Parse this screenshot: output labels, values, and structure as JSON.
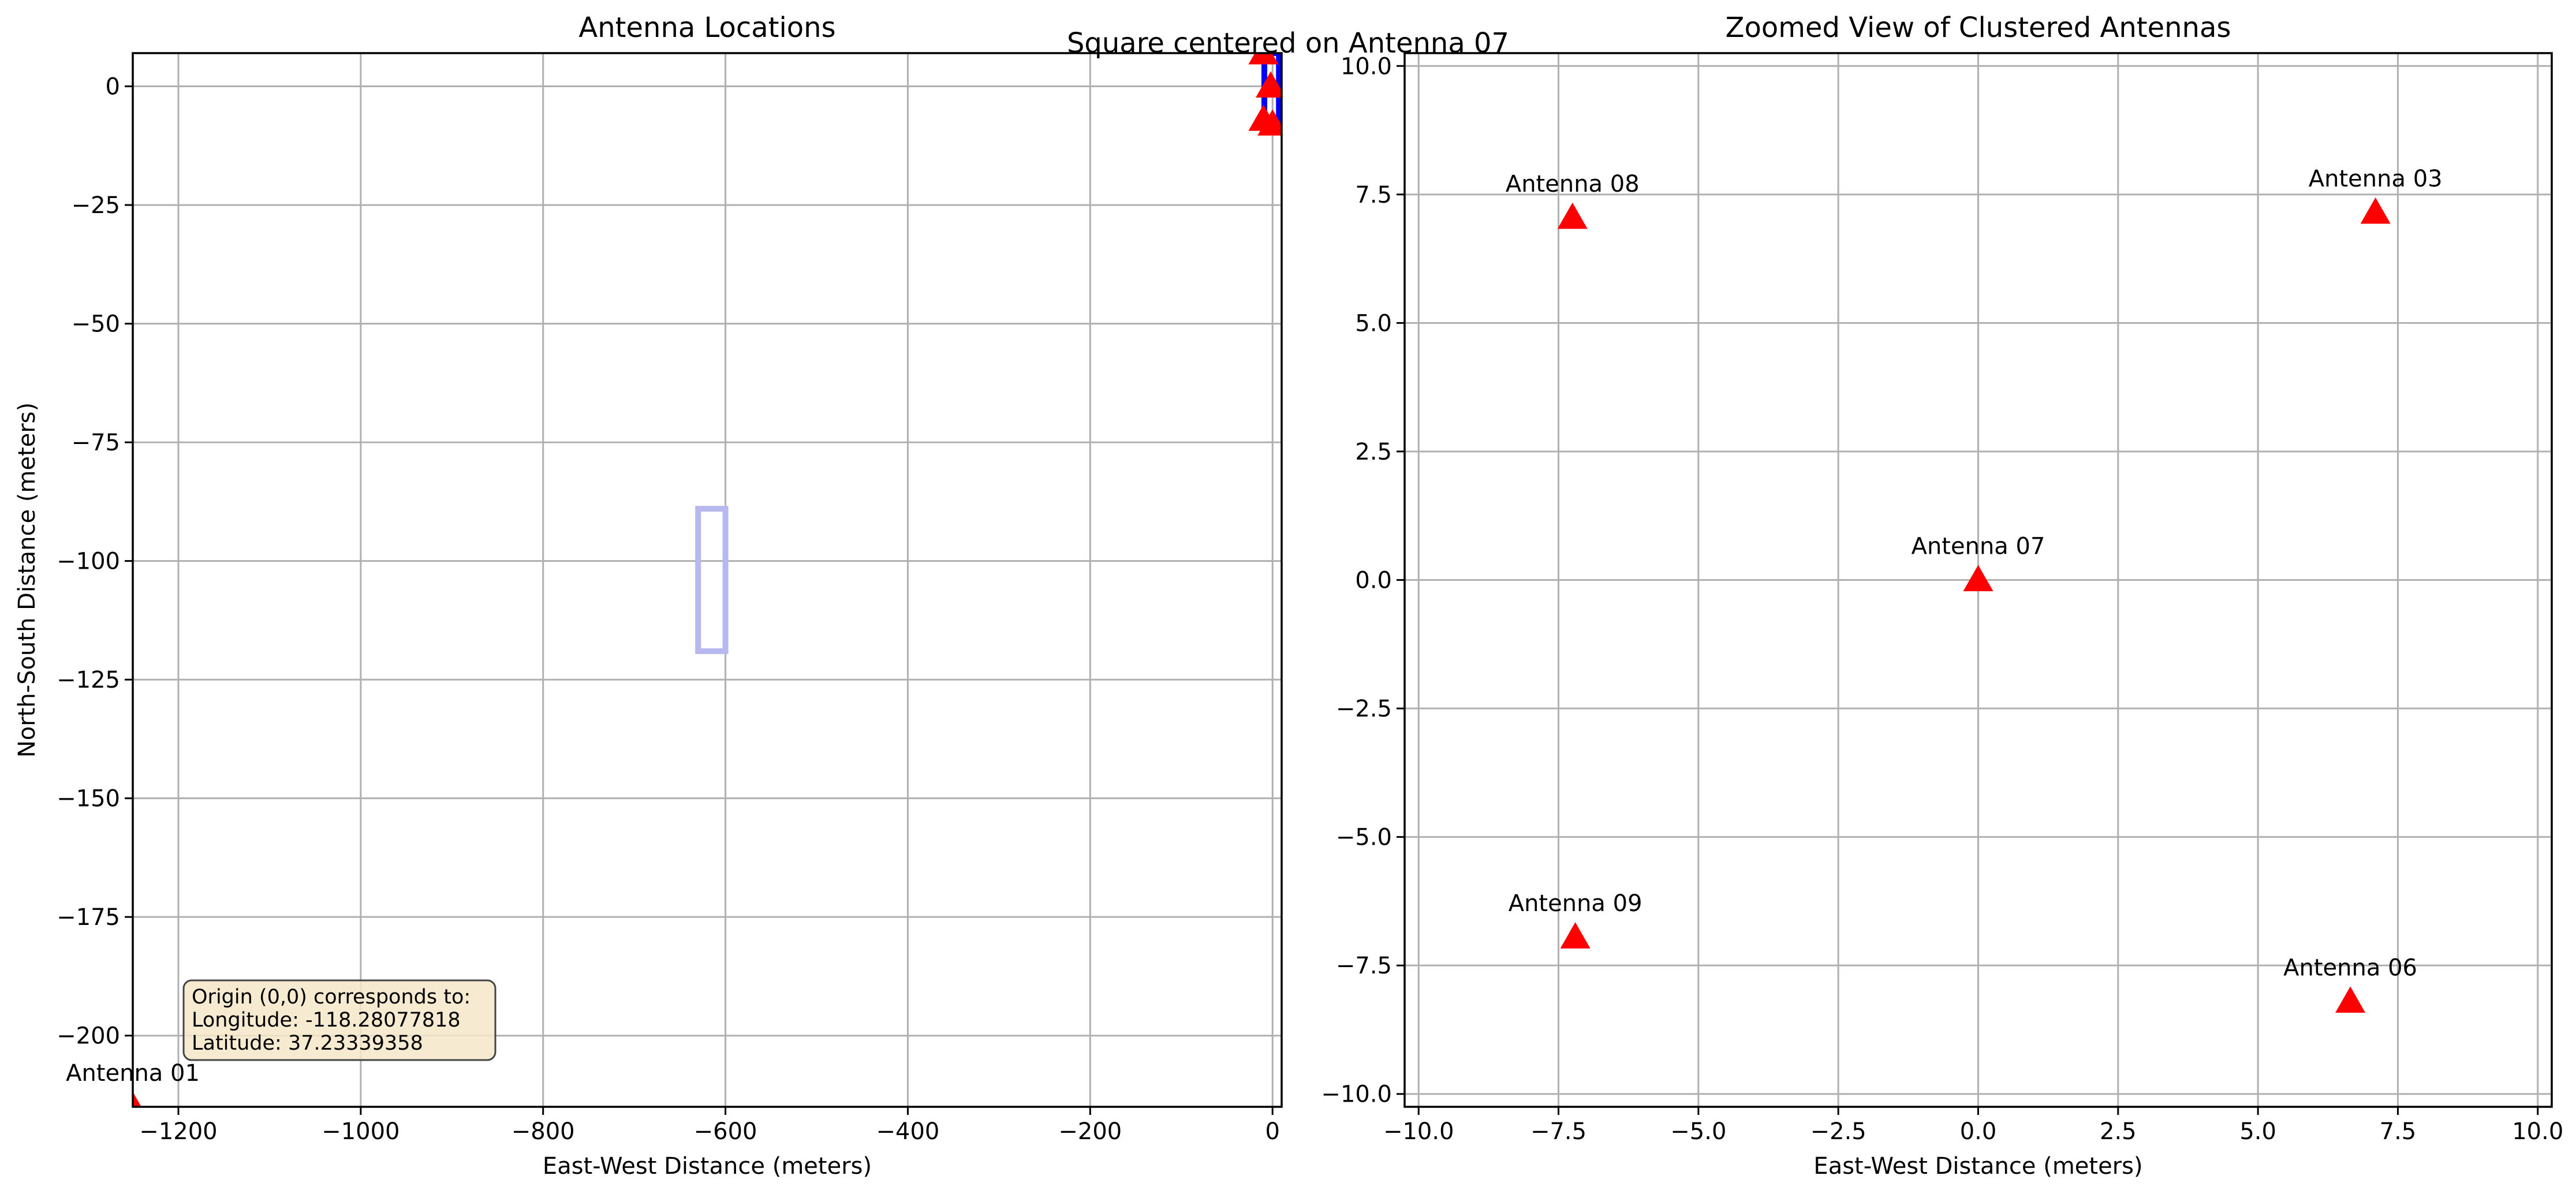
{
  "suptitle": "Square centered on Antenna 07",
  "chart_data": [
    {
      "type": "scatter",
      "title": "Antenna Locations",
      "xlabel": "East-West Distance (meters)",
      "ylabel": "North-South Distance (meters)",
      "xlim": [
        -1250,
        10
      ],
      "ylim": [
        -215,
        7
      ],
      "grid": true,
      "xticks": [
        -1200,
        -1000,
        -800,
        -600,
        -400,
        -200,
        0
      ],
      "xtick_labels": [
        "−1200",
        "−1000",
        "−800",
        "−600",
        "−400",
        "−200",
        "0"
      ],
      "yticks": [
        0,
        -25,
        -50,
        -75,
        -100,
        -125,
        -150,
        -175,
        -200
      ],
      "ytick_labels": [
        "0",
        "−25",
        "−50",
        "−75",
        "−100",
        "−125",
        "−150",
        "−175",
        "−200"
      ],
      "marker_color": "#ff0000",
      "points": [
        {
          "label": "Antenna 01",
          "x": -1250,
          "y": -215
        },
        {
          "label": "",
          "x": -10,
          "y": 7
        },
        {
          "label": "",
          "x": -2,
          "y": 0
        },
        {
          "label": "",
          "x": -10,
          "y": -7
        },
        {
          "label": "",
          "x": 0,
          "y": -8
        }
      ],
      "squares": [
        {
          "x": -615,
          "y": -104,
          "half_size": 15,
          "color": "#b8b8f0"
        },
        {
          "x": -1,
          "y": -1,
          "half_size": 8,
          "color": "#0000ff"
        }
      ],
      "info_box": {
        "lines": [
          "Origin (0,0) corresponds to:",
          "Longitude: -118.28077818",
          "Latitude: 37.23339358"
        ],
        "background": "#f5e6c8"
      }
    },
    {
      "type": "scatter",
      "title": "Zoomed View of Clustered Antennas",
      "xlabel": "East-West Distance (meters)",
      "ylabel": "",
      "xlim": [
        -10.25,
        10.25
      ],
      "ylim": [
        -10.25,
        10.25
      ],
      "grid": true,
      "xticks": [
        -10,
        -7.5,
        -5,
        -2.5,
        0,
        2.5,
        5,
        7.5,
        10
      ],
      "xtick_labels": [
        "−10.0",
        "−7.5",
        "−5.0",
        "−2.5",
        "0.0",
        "2.5",
        "5.0",
        "7.5",
        "10.0"
      ],
      "yticks": [
        10,
        7.5,
        5,
        2.5,
        0,
        -2.5,
        -5,
        -7.5,
        -10
      ],
      "ytick_labels": [
        "10.0",
        "7.5",
        "5.0",
        "2.5",
        "0.0",
        "−2.5",
        "−5.0",
        "−7.5",
        "−10.0"
      ],
      "marker_color": "#ff0000",
      "points": [
        {
          "label": "Antenna 08",
          "x": -7.25,
          "y": 7.05
        },
        {
          "label": "Antenna 03",
          "x": 7.1,
          "y": 7.15
        },
        {
          "label": "Antenna 07",
          "x": 0,
          "y": 0
        },
        {
          "label": "Antenna 09",
          "x": -7.2,
          "y": -6.95
        },
        {
          "label": "Antenna 06",
          "x": 6.65,
          "y": -8.2
        }
      ]
    }
  ]
}
